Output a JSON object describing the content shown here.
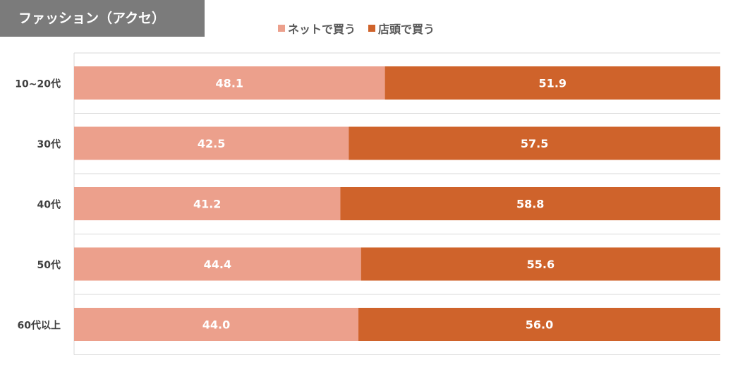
{
  "header": {
    "title": "ファッション（アクセ）"
  },
  "colors": {
    "title_bg": "#7b7b7b",
    "online": "#eca08c",
    "store": "#cf632b",
    "gridline": "#d9d9d9",
    "category_text": "#404040",
    "label_text": "#ffffff"
  },
  "chart_data": {
    "type": "bar",
    "orientation": "horizontal",
    "stacked": true,
    "categories": [
      "10~20代",
      "30代",
      "40代",
      "50代",
      "60代以上"
    ],
    "series": [
      {
        "name": "ネットで買う",
        "values": [
          48.1,
          42.5,
          41.2,
          44.4,
          44.0
        ],
        "labels": [
          "48.1",
          "42.5",
          "41.2",
          "44.4",
          "44.0"
        ]
      },
      {
        "name": "店頭で買う",
        "values": [
          51.9,
          57.5,
          58.8,
          55.6,
          56.0
        ],
        "labels": [
          "51.9",
          "57.5",
          "58.8",
          "55.6",
          "56.0"
        ]
      }
    ],
    "xlim": [
      0,
      100
    ],
    "legend_position": "top",
    "grid": true
  }
}
